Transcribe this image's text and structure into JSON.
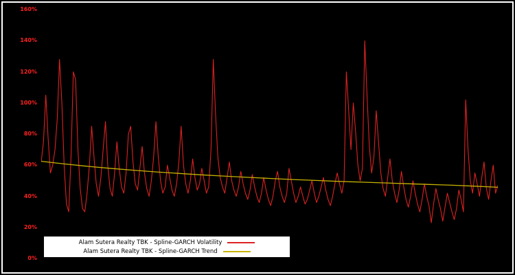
{
  "colors": {
    "background": "#000000",
    "figure_border": "#ffffff",
    "axis_tick_text": "#ff2020",
    "volatility_line": "#dd2222",
    "trend_line": "#c8b400",
    "legend_background": "#ffffff",
    "legend_text": "#000000"
  },
  "chart_data": {
    "type": "line",
    "title": "",
    "xlabel": "",
    "ylabel": "",
    "ylim": [
      0,
      160
    ],
    "grid": false,
    "legend_position": "bottom-left",
    "x_axis_tick_labels_visible": false,
    "y_ticks": [
      "0%",
      "20%",
      "40%",
      "60%",
      "80%",
      "100%",
      "120%",
      "140%",
      "160%"
    ],
    "y_tick_values": [
      0,
      20,
      40,
      60,
      80,
      100,
      120,
      140,
      160
    ],
    "series": [
      {
        "name": "Alam Sutera Realty TBK - Spline-GARCH Volatility",
        "color": "#dd2222",
        "unit": "%",
        "values": [
          62,
          75,
          105,
          78,
          55,
          60,
          70,
          90,
          128,
          100,
          60,
          35,
          30,
          65,
          120,
          115,
          70,
          45,
          32,
          30,
          42,
          60,
          85,
          65,
          48,
          40,
          52,
          70,
          88,
          60,
          45,
          40,
          55,
          75,
          58,
          46,
          42,
          55,
          80,
          85,
          62,
          48,
          44,
          58,
          72,
          55,
          45,
          40,
          50,
          65,
          88,
          66,
          50,
          42,
          46,
          60,
          52,
          44,
          40,
          48,
          62,
          85,
          60,
          48,
          42,
          50,
          64,
          52,
          44,
          48,
          58,
          50,
          42,
          46,
          70,
          128,
          92,
          65,
          52,
          46,
          42,
          52,
          62,
          50,
          44,
          40,
          46,
          56,
          48,
          42,
          38,
          44,
          54,
          46,
          40,
          36,
          42,
          52,
          44,
          38,
          34,
          40,
          50,
          56,
          46,
          40,
          36,
          42,
          58,
          50,
          42,
          36,
          40,
          46,
          40,
          35,
          38,
          44,
          50,
          42,
          36,
          40,
          46,
          52,
          44,
          38,
          34,
          40,
          48,
          55,
          48,
          42,
          50,
          120,
          95,
          70,
          100,
          82,
          60,
          50,
          58,
          140,
          105,
          72,
          55,
          65,
          95,
          75,
          55,
          45,
          40,
          52,
          64,
          50,
          42,
          36,
          44,
          56,
          46,
          38,
          33,
          40,
          50,
          42,
          35,
          30,
          38,
          48,
          40,
          34,
          23,
          35,
          45,
          38,
          32,
          24,
          33,
          42,
          36,
          30,
          25,
          32,
          44,
          38,
          30,
          102,
          70,
          50,
          42,
          55,
          48,
          40,
          52,
          62,
          45,
          38,
          50,
          60,
          42,
          47
        ]
      },
      {
        "name": "Alam Sutera Realty TBK - Spline-GARCH Trend",
        "color": "#c8b400",
        "unit": "%",
        "values": [
          62.5,
          60.8,
          59.3,
          58.0,
          56.8,
          55.7,
          54.7,
          53.8,
          53.0,
          52.2,
          51.5,
          50.8,
          50.2,
          49.6,
          49.1,
          48.6,
          48.1,
          47.6,
          47.1,
          46.5,
          45.8
        ]
      }
    ]
  },
  "legend": {
    "entries": [
      {
        "label": "Alam Sutera Realty TBK - Spline-GARCH Volatility",
        "color": "#dd2222"
      },
      {
        "label": "Alam Sutera Realty TBK - Spline-GARCH Trend",
        "color": "#c8b400"
      }
    ]
  }
}
